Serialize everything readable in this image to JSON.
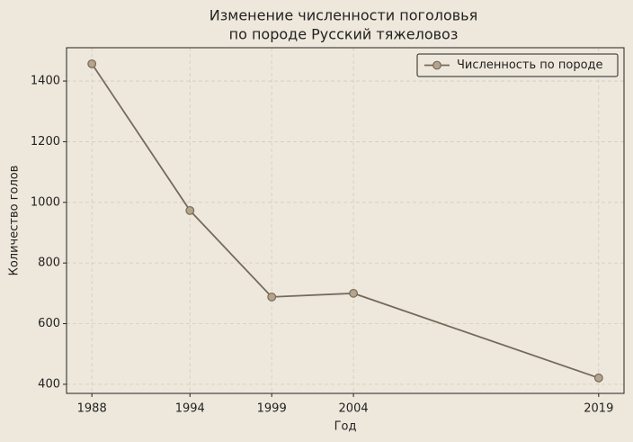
{
  "chart_data": {
    "type": "line",
    "title": [
      "Изменение численности поголовья",
      "по породе Русский тяжеловоз"
    ],
    "x_label": "Год",
    "y_label": "Количество голов",
    "x": [
      1988,
      1994,
      1999,
      2004,
      2019
    ],
    "series": [
      {
        "name": "Численность по породе",
        "color": "#756a5c",
        "marker_color": "#b5a48a",
        "values": [
          1457,
          973,
          688,
          700,
          421
        ]
      }
    ],
    "xlim": [
      1986.45,
      2020.55
    ],
    "xticks": [
      1988,
      1994,
      1999,
      2004,
      2019
    ],
    "ylim": [
      370,
      1510
    ],
    "yticks": [
      400,
      600,
      800,
      1000,
      1200,
      1400
    ],
    "grid": true,
    "legend": "upper right"
  }
}
